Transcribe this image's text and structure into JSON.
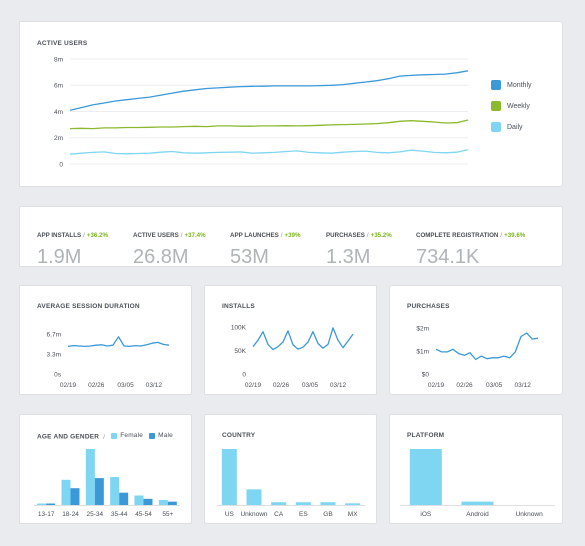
{
  "colors": {
    "monthly": "#3b99d8",
    "weekly": "#8ab92d",
    "daily": "#7fd6f2",
    "female": "#7fd6f2",
    "male": "#3b99d8",
    "delta": "#7ab51d"
  },
  "active_users": {
    "title": "ACTIVE USERS",
    "legend": [
      {
        "label": "Monthly",
        "color": "#3b99d8"
      },
      {
        "label": "Weekly",
        "color": "#8ab92d"
      },
      {
        "label": "Daily",
        "color": "#7fd6f2"
      }
    ]
  },
  "kpis": [
    {
      "label": "APP INSTALLS",
      "delta": "+36.2%",
      "value": "1.9M"
    },
    {
      "label": "ACTIVE USERS",
      "delta": "+37.4%",
      "value": "26.8M"
    },
    {
      "label": "APP LAUNCHES",
      "delta": "+39%",
      "value": "53M"
    },
    {
      "label": "PURCHASES",
      "delta": "+35.2%",
      "value": "1.3M"
    },
    {
      "label": "COMPLETE REGISTRATION",
      "delta": "+39.6%",
      "value": "734.1K"
    }
  ],
  "cards": {
    "session": {
      "title": "AVERAGE SESSION DURATION"
    },
    "installs": {
      "title": "INSTALLS"
    },
    "purchases": {
      "title": "PURCHASES"
    },
    "age_gender": {
      "title": "AGE AND GENDER",
      "sep": "/",
      "female": "Female",
      "male": "Male"
    },
    "country": {
      "title": "COUNTRY"
    },
    "platform": {
      "title": "PLATFORM"
    }
  },
  "chart_data": [
    {
      "id": "active_users",
      "type": "line",
      "title": "ACTIVE USERS",
      "x_ticks": [
        "02/19",
        "02/26",
        "03/05",
        "03/12"
      ],
      "y_ticks": [
        "8m",
        "6m",
        "4m",
        "2m",
        "0"
      ],
      "ylim": [
        0,
        8
      ],
      "series": [
        {
          "name": "Monthly",
          "values": [
            4.1,
            4.3,
            4.5,
            4.65,
            4.8,
            4.9,
            5.0,
            5.1,
            5.25,
            5.4,
            5.55,
            5.65,
            5.75,
            5.8,
            5.85,
            5.9,
            5.92,
            5.93,
            5.95,
            5.95,
            5.95,
            5.95,
            5.97,
            6.0,
            6.05,
            6.15,
            6.25,
            6.35,
            6.5,
            6.7,
            6.75,
            6.8,
            6.82,
            6.85,
            6.95,
            7.1
          ]
        },
        {
          "name": "Weekly",
          "values": [
            2.7,
            2.72,
            2.7,
            2.75,
            2.75,
            2.78,
            2.78,
            2.8,
            2.82,
            2.82,
            2.85,
            2.87,
            2.85,
            2.9,
            2.9,
            2.88,
            2.88,
            2.9,
            2.9,
            2.92,
            2.9,
            2.92,
            2.95,
            2.98,
            3.0,
            3.02,
            3.05,
            3.08,
            3.15,
            3.25,
            3.3,
            3.25,
            3.2,
            3.12,
            3.15,
            3.35
          ]
        },
        {
          "name": "Daily",
          "values": [
            0.75,
            0.82,
            0.88,
            0.92,
            0.8,
            0.78,
            0.8,
            0.82,
            0.9,
            0.95,
            0.85,
            0.82,
            0.85,
            0.88,
            0.9,
            0.92,
            0.82,
            0.85,
            0.88,
            0.95,
            1.0,
            0.88,
            0.85,
            0.82,
            0.9,
            0.95,
            0.98,
            0.88,
            0.85,
            0.92,
            1.05,
            0.98,
            0.88,
            0.85,
            0.9,
            1.08
          ]
        }
      ]
    },
    {
      "id": "session",
      "type": "line",
      "title": "AVERAGE SESSION DURATION",
      "x_ticks": [
        "02/19",
        "02/26",
        "03/05",
        "03/12"
      ],
      "y_ticks": [
        "6.7m",
        "3.3m",
        "0s"
      ],
      "ylim": [
        0,
        10
      ],
      "series": [
        {
          "name": "",
          "values": [
            6.9,
            7.1,
            7.0,
            6.9,
            7.0,
            7.2,
            7.3,
            7.0,
            7.2,
            9.3,
            7.0,
            6.9,
            7.1,
            7.0,
            7.3,
            7.7,
            7.9,
            7.4,
            7.2
          ]
        }
      ]
    },
    {
      "id": "installs",
      "type": "line",
      "title": "INSTALLS",
      "x_ticks": [
        "02/19",
        "02/26",
        "03/05",
        "03/12"
      ],
      "y_ticks": [
        "100K",
        "50K",
        "0"
      ],
      "ylim": [
        0,
        100
      ],
      "series": [
        {
          "name": "",
          "values": [
            58,
            72,
            90,
            63,
            52,
            58,
            68,
            92,
            62,
            53,
            57,
            68,
            90,
            65,
            55,
            63,
            98,
            72,
            56,
            70,
            85
          ]
        }
      ]
    },
    {
      "id": "purchases",
      "type": "line",
      "title": "PURCHASES",
      "x_ticks": [
        "02/19",
        "02/26",
        "03/05",
        "03/12"
      ],
      "y_ticks": [
        "$2m",
        "$1m",
        "$0"
      ],
      "ylim": [
        0,
        2.7
      ],
      "series": [
        {
          "name": "",
          "values": [
            1.45,
            1.3,
            1.3,
            1.45,
            1.2,
            1.1,
            1.25,
            0.85,
            1.05,
            0.9,
            0.95,
            0.95,
            1.05,
            0.95,
            1.3,
            2.2,
            2.4,
            2.05,
            2.1
          ]
        }
      ]
    },
    {
      "id": "age_gender",
      "type": "bar",
      "title": "AGE AND GENDER",
      "categories": [
        "13-17",
        "18-24",
        "25-34",
        "35-44",
        "45-54",
        "55+"
      ],
      "ylim": [
        0,
        100
      ],
      "series": [
        {
          "name": "Female",
          "values": [
            2,
            45,
            100,
            50,
            17,
            9
          ]
        },
        {
          "name": "Male",
          "values": [
            2,
            30,
            48,
            22,
            11,
            6
          ]
        }
      ]
    },
    {
      "id": "country",
      "type": "bar",
      "title": "COUNTRY",
      "categories": [
        "US",
        "Unknown",
        "CA",
        "ES",
        "GB",
        "MX"
      ],
      "ylim": [
        0,
        100
      ],
      "values": [
        100,
        28,
        5,
        5,
        5,
        3
      ]
    },
    {
      "id": "platform",
      "type": "bar",
      "title": "PLATFORM",
      "categories": [
        "iOS",
        "Android",
        "Unknown"
      ],
      "ylim": [
        0,
        100
      ],
      "values": [
        100,
        6,
        0
      ]
    }
  ]
}
